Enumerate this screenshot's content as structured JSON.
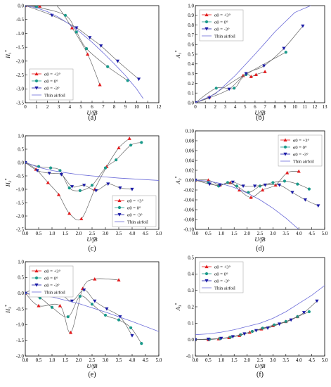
{
  "chart_data": [
    {
      "id": "a",
      "type": "line",
      "panel_label": "(a)",
      "ylabel": "H1*",
      "xlabel": "U/fB",
      "xlim": [
        0,
        12
      ],
      "ylim": [
        -3.5,
        0
      ],
      "xticks": [
        0,
        1,
        2,
        3,
        4,
        5,
        6,
        7,
        8,
        9,
        10,
        11,
        12
      ],
      "yticks": [
        0,
        -0.5,
        -1,
        -1.5,
        -2,
        -2.5,
        -3,
        -3.5
      ],
      "ytick_labels": [
        "0.0",
        "-0.5",
        "-1.0",
        "-1.5",
        "-2.0",
        "-2.5",
        "-3.0",
        "-3.5"
      ],
      "legend_pos": "bottom-left",
      "series": [
        {
          "name": "α0 = +3°",
          "color": "#e31a1c",
          "marker": "tri-up",
          "x": [
            0,
            1.3,
            2.6,
            4.2,
            5.6,
            6.7
          ],
          "y": [
            0,
            -0.02,
            0.08,
            -0.8,
            -1.75,
            -2.85
          ]
        },
        {
          "name": "α0 = 0°",
          "color": "#1a9a8a",
          "marker": "circle",
          "x": [
            0,
            1.0,
            3.6,
            4.6,
            5.5,
            7.4,
            9.2
          ],
          "y": [
            0,
            -0.05,
            -0.35,
            -0.95,
            -1.55,
            -2.2,
            -2.7
          ]
        },
        {
          "name": "α0 = -3°",
          "color": "#1a1aa6",
          "marker": "tri-down",
          "x": [
            0,
            2.4,
            4.6,
            5.8,
            6.8,
            8.3,
            10.2
          ],
          "y": [
            0,
            -0.35,
            -0.8,
            -1.15,
            -1.45,
            -2.0,
            -2.65
          ]
        },
        {
          "name": "Thin airfoil",
          "color": "#6a6ad8",
          "marker": "none",
          "x": [
            0,
            1,
            2,
            3,
            4,
            5,
            6,
            7,
            8,
            9,
            10,
            10.6
          ],
          "y": [
            0,
            -0.08,
            -0.22,
            -0.42,
            -0.68,
            -0.98,
            -1.32,
            -1.7,
            -2.1,
            -2.52,
            -3.0,
            -3.35
          ]
        }
      ]
    },
    {
      "id": "b",
      "type": "line",
      "panel_label": "(b)",
      "ylabel": "A1*",
      "xlabel": "U/fB",
      "xlim": [
        0,
        13
      ],
      "ylim": [
        0,
        1
      ],
      "xticks": [
        0,
        1,
        2,
        3,
        4,
        5,
        6,
        7,
        8,
        9,
        10,
        11,
        12,
        13
      ],
      "yticks": [
        0,
        0.1,
        0.2,
        0.3,
        0.4,
        0.5,
        0.6,
        0.7,
        0.8,
        0.9,
        1.0
      ],
      "ytick_labels": [
        "0.0",
        "0.1",
        "0.2",
        "0.3",
        "0.4",
        "0.5",
        "0.6",
        "0.7",
        "0.8",
        "0.9",
        "1.0"
      ],
      "legend_pos": "top-left",
      "series": [
        {
          "name": "α0 = +3°",
          "color": "#e31a1c",
          "marker": "tri-up",
          "x": [
            0,
            1.4,
            4.8,
            5.6,
            6.1,
            7.0
          ],
          "y": [
            0,
            0.06,
            0.28,
            0.27,
            0.29,
            0.32
          ]
        },
        {
          "name": "α0 = 0°",
          "color": "#1a9a8a",
          "marker": "circle",
          "x": [
            0,
            2.1,
            3.9,
            5.1,
            9.1
          ],
          "y": [
            0,
            0.15,
            0.15,
            0.29,
            0.52
          ]
        },
        {
          "name": "α0 = -3°",
          "color": "#1a1aa6",
          "marker": "tri-down",
          "x": [
            0,
            1.4,
            3.4,
            5.1,
            6.9,
            8.9,
            10.8
          ],
          "y": [
            0,
            0.05,
            0.14,
            0.3,
            0.38,
            0.56,
            0.79
          ]
        },
        {
          "name": "Thin airfoil",
          "color": "#6a6ad8",
          "marker": "none",
          "x": [
            0,
            2,
            4,
            6,
            8,
            10,
            11.6
          ],
          "y": [
            0,
            0.09,
            0.28,
            0.5,
            0.73,
            0.93,
            1.0
          ]
        }
      ]
    },
    {
      "id": "c",
      "type": "line",
      "panel_label": "(c)",
      "ylabel": "H2*",
      "xlabel": "U/fB",
      "xlim": [
        0,
        5
      ],
      "ylim": [
        -2.5,
        1
      ],
      "xticks": [
        0,
        0.5,
        1,
        1.5,
        2,
        2.5,
        3,
        3.5,
        4,
        4.5,
        5
      ],
      "xtick_labels": [
        "0.0",
        "0.5",
        "1.0",
        "1.5",
        "2.0",
        "2.5",
        "3.0",
        "3.5",
        "4.0",
        "4.5",
        "5.0"
      ],
      "yticks": [
        1,
        0.5,
        0,
        -0.5,
        -1,
        -1.5,
        -2,
        -2.5
      ],
      "ytick_labels": [
        "1.0",
        "0.5",
        "0.0",
        "-0.5",
        "-1.0",
        "-1.5",
        "-2.0",
        "-2.5"
      ],
      "legend_pos": "bottom-right",
      "series": [
        {
          "name": "α0 = +3°",
          "color": "#e31a1c",
          "marker": "tri-up",
          "x": [
            0,
            0.4,
            0.85,
            1.25,
            1.65,
            2.1,
            2.6,
            3.05,
            3.5,
            3.9
          ],
          "y": [
            0,
            -0.25,
            -0.75,
            -1.2,
            -1.9,
            -2.1,
            -1.0,
            -0.15,
            0.55,
            0.9
          ]
        },
        {
          "name": "α0 = 0°",
          "color": "#1a9a8a",
          "marker": "circle",
          "x": [
            0,
            0.5,
            0.95,
            1.3,
            1.65,
            2.05,
            2.5,
            3.0,
            3.4,
            3.95,
            4.35
          ],
          "y": [
            0,
            -0.15,
            -0.2,
            -0.3,
            -0.95,
            -1.05,
            -0.85,
            -0.2,
            0.1,
            0.65,
            0.75
          ]
        },
        {
          "name": "α0 = -3°",
          "color": "#1a1aa6",
          "marker": "tri-down",
          "x": [
            0,
            0.45,
            0.9,
            1.35,
            1.75,
            2.2,
            2.65,
            3.1,
            3.55,
            4.0
          ],
          "y": [
            0,
            -0.3,
            -0.4,
            -0.45,
            -0.9,
            -0.85,
            -1.05,
            -0.8,
            -0.95,
            -1.0
          ]
        },
        {
          "name": "Thin airfoil",
          "color": "#6a6ad8",
          "marker": "none",
          "x": [
            0,
            0.5,
            1,
            1.5,
            2,
            2.5,
            3,
            3.5,
            4,
            4.5,
            5
          ],
          "y": [
            0,
            -0.18,
            -0.3,
            -0.38,
            -0.45,
            -0.5,
            -0.54,
            -0.58,
            -0.61,
            -0.64,
            -0.67
          ]
        }
      ]
    },
    {
      "id": "d",
      "type": "line",
      "panel_label": "(d)",
      "ylabel": "A2*",
      "xlabel": "U/fB",
      "xlim": [
        0,
        5
      ],
      "ylim": [
        -0.1,
        0.1
      ],
      "xticks": [
        0,
        0.5,
        1,
        1.5,
        2,
        2.5,
        3,
        3.5,
        4,
        4.5,
        5
      ],
      "xtick_labels": [
        "0.0",
        "0.5",
        "1.0",
        "1.5",
        "2.0",
        "2.5",
        "3.0",
        "3.5",
        "4.0",
        "4.5",
        "5.0"
      ],
      "yticks": [
        0.1,
        0.08,
        0.06,
        0.04,
        0.02,
        0,
        -0.02,
        -0.04,
        -0.06,
        -0.08,
        -0.1
      ],
      "ytick_labels": [
        "0.10",
        "0.08",
        "0.06",
        "0.04",
        "0.02",
        "0.00",
        "-0.02",
        "-0.04",
        "-0.06",
        "-0.08",
        "-0.10"
      ],
      "legend_pos": "top-right",
      "series": [
        {
          "name": "α0 = +3°",
          "color": "#e31a1c",
          "marker": "tri-up",
          "x": [
            0,
            0.5,
            0.95,
            1.35,
            1.7,
            2.15,
            2.6,
            3.1,
            3.55,
            4.0
          ],
          "y": [
            0,
            0.0,
            -0.01,
            -0.005,
            -0.02,
            -0.035,
            -0.02,
            -0.01,
            0.015,
            0.018
          ]
        },
        {
          "name": "α0 = 0°",
          "color": "#1a9a8a",
          "marker": "circle",
          "x": [
            0,
            0.5,
            0.9,
            1.25,
            1.6,
            2.05,
            2.5,
            3.0,
            3.45,
            3.95,
            4.4
          ],
          "y": [
            0,
            -0.005,
            -0.012,
            -0.005,
            -0.012,
            -0.025,
            -0.012,
            -0.005,
            -0.002,
            -0.008,
            -0.018
          ]
        },
        {
          "name": "α0 = -3°",
          "color": "#1a1aa6",
          "marker": "tri-down",
          "x": [
            0,
            0.55,
            0.95,
            1.45,
            1.85,
            2.3,
            2.7,
            3.25,
            3.75,
            4.25,
            4.75
          ],
          "y": [
            0,
            -0.008,
            -0.01,
            -0.004,
            -0.012,
            -0.012,
            -0.01,
            -0.01,
            -0.025,
            -0.04,
            -0.052
          ]
        },
        {
          "name": "Thin airfoil",
          "color": "#6a6ad8",
          "marker": "none",
          "x": [
            0,
            0.5,
            1,
            1.5,
            2,
            2.5,
            3,
            3.5,
            4
          ],
          "y": [
            0,
            -0.002,
            -0.007,
            -0.015,
            -0.026,
            -0.04,
            -0.057,
            -0.077,
            -0.1
          ]
        }
      ]
    },
    {
      "id": "e",
      "type": "line",
      "panel_label": "(e)",
      "ylabel": "H3*",
      "xlabel": "U/fB",
      "xlim": [
        0,
        5
      ],
      "ylim": [
        -2,
        1
      ],
      "xticks": [
        0,
        0.5,
        1,
        1.5,
        2,
        2.5,
        3,
        3.5,
        4,
        4.5,
        5
      ],
      "xtick_labels": [
        "0.0",
        "0.5",
        "1.0",
        "1.5",
        "2.0",
        "2.5",
        "3.0",
        "3.5",
        "4.0",
        "4.5",
        "5.0"
      ],
      "yticks": [
        1,
        0.5,
        0,
        -0.5,
        -1,
        -1.5,
        -2
      ],
      "ytick_labels": [
        "1.0",
        "0.5",
        "0.0",
        "-0.5",
        "-1.0",
        "-1.5",
        "-2.0"
      ],
      "legend_pos": "top-left",
      "series": [
        {
          "name": "α0 = +3°",
          "color": "#e31a1c",
          "marker": "tri-up",
          "x": [
            0,
            0.5,
            1.3,
            1.7,
            2.15,
            2.6,
            3.5
          ],
          "y": [
            0,
            -0.4,
            -0.4,
            -1.25,
            0.15,
            0.45,
            0.42
          ]
        },
        {
          "name": "α0 = 0°",
          "color": "#1a9a8a",
          "marker": "circle",
          "x": [
            0,
            0.55,
            1.0,
            1.6,
            2.05,
            2.5,
            3.0,
            3.5,
            3.95,
            4.35
          ],
          "y": [
            0,
            -0.15,
            -0.45,
            -0.75,
            -0.1,
            -0.35,
            -0.7,
            -0.85,
            -1.1,
            -1.6
          ]
        },
        {
          "name": "α0 = -3°",
          "color": "#1a1aa6",
          "marker": "tri-down",
          "x": [
            0,
            0.45,
            0.9,
            1.35,
            1.75,
            2.2,
            2.6,
            3.05,
            3.55,
            4.0
          ],
          "y": [
            0,
            0.18,
            0.0,
            -0.05,
            -0.25,
            0.1,
            -0.25,
            -0.5,
            -0.75,
            -1.35
          ]
        },
        {
          "name": "Thin airfoil",
          "color": "#6a6ad8",
          "marker": "none",
          "x": [
            0,
            1,
            2,
            3,
            4,
            5
          ],
          "y": [
            0,
            -0.12,
            -0.33,
            -0.6,
            -0.9,
            -1.22
          ]
        }
      ]
    },
    {
      "id": "f",
      "type": "line",
      "panel_label": "(f)",
      "ylabel": "A3*",
      "xlabel": "U/fB",
      "xlim": [
        0,
        5
      ],
      "ylim": [
        -0.1,
        0.5
      ],
      "xticks": [
        0,
        0.5,
        1,
        1.5,
        2,
        2.5,
        3,
        3.5,
        4,
        4.5,
        5
      ],
      "xtick_labels": [
        "0.0",
        "0.5",
        "1.0",
        "1.5",
        "2.0",
        "2.5",
        "3.0",
        "3.5",
        "4.0",
        "4.5",
        "5.0"
      ],
      "yticks": [
        0.5,
        0.4,
        0.3,
        0.2,
        0.1,
        0,
        -0.1
      ],
      "ytick_labels": [
        "0.5",
        "0.4",
        "0.3",
        "0.2",
        "0.1",
        "0.0",
        "-0.1"
      ],
      "legend_pos": "top-left",
      "series": [
        {
          "name": "α0 = +3°",
          "color": "#e31a1c",
          "marker": "tri-up",
          "x": [
            0,
            0.5,
            0.9,
            1.3,
            1.7,
            2.1,
            2.55,
            3.0,
            3.5,
            3.95
          ],
          "y": [
            0,
            0.0,
            0.005,
            0.012,
            0.025,
            0.045,
            0.065,
            0.085,
            0.11,
            0.14
          ]
        },
        {
          "name": "α0 = 0°",
          "color": "#1a9a8a",
          "marker": "circle",
          "x": [
            0,
            0.55,
            0.95,
            1.35,
            1.75,
            2.2,
            2.6,
            3.05,
            3.5,
            3.95,
            4.4
          ],
          "y": [
            0,
            0.003,
            0.006,
            0.015,
            0.03,
            0.05,
            0.07,
            0.09,
            0.11,
            0.14,
            0.17
          ]
        },
        {
          "name": "α0 = -3°",
          "color": "#1a1aa6",
          "marker": "tri-down",
          "x": [
            0,
            0.5,
            1.0,
            1.45,
            1.9,
            2.35,
            2.8,
            3.25,
            3.7,
            4.2,
            4.7
          ],
          "y": [
            0,
            0.003,
            0.008,
            0.018,
            0.035,
            0.055,
            0.07,
            0.095,
            0.12,
            0.165,
            0.235
          ]
        },
        {
          "name": "Thin airfoil",
          "color": "#6a6ad8",
          "marker": "none",
          "x": [
            0,
            0.5,
            1,
            1.5,
            2,
            2.5,
            3,
            3.5,
            4,
            4.5,
            5
          ],
          "y": [
            0.03,
            0.035,
            0.045,
            0.06,
            0.08,
            0.1,
            0.13,
            0.17,
            0.22,
            0.27,
            0.33
          ]
        }
      ]
    }
  ]
}
